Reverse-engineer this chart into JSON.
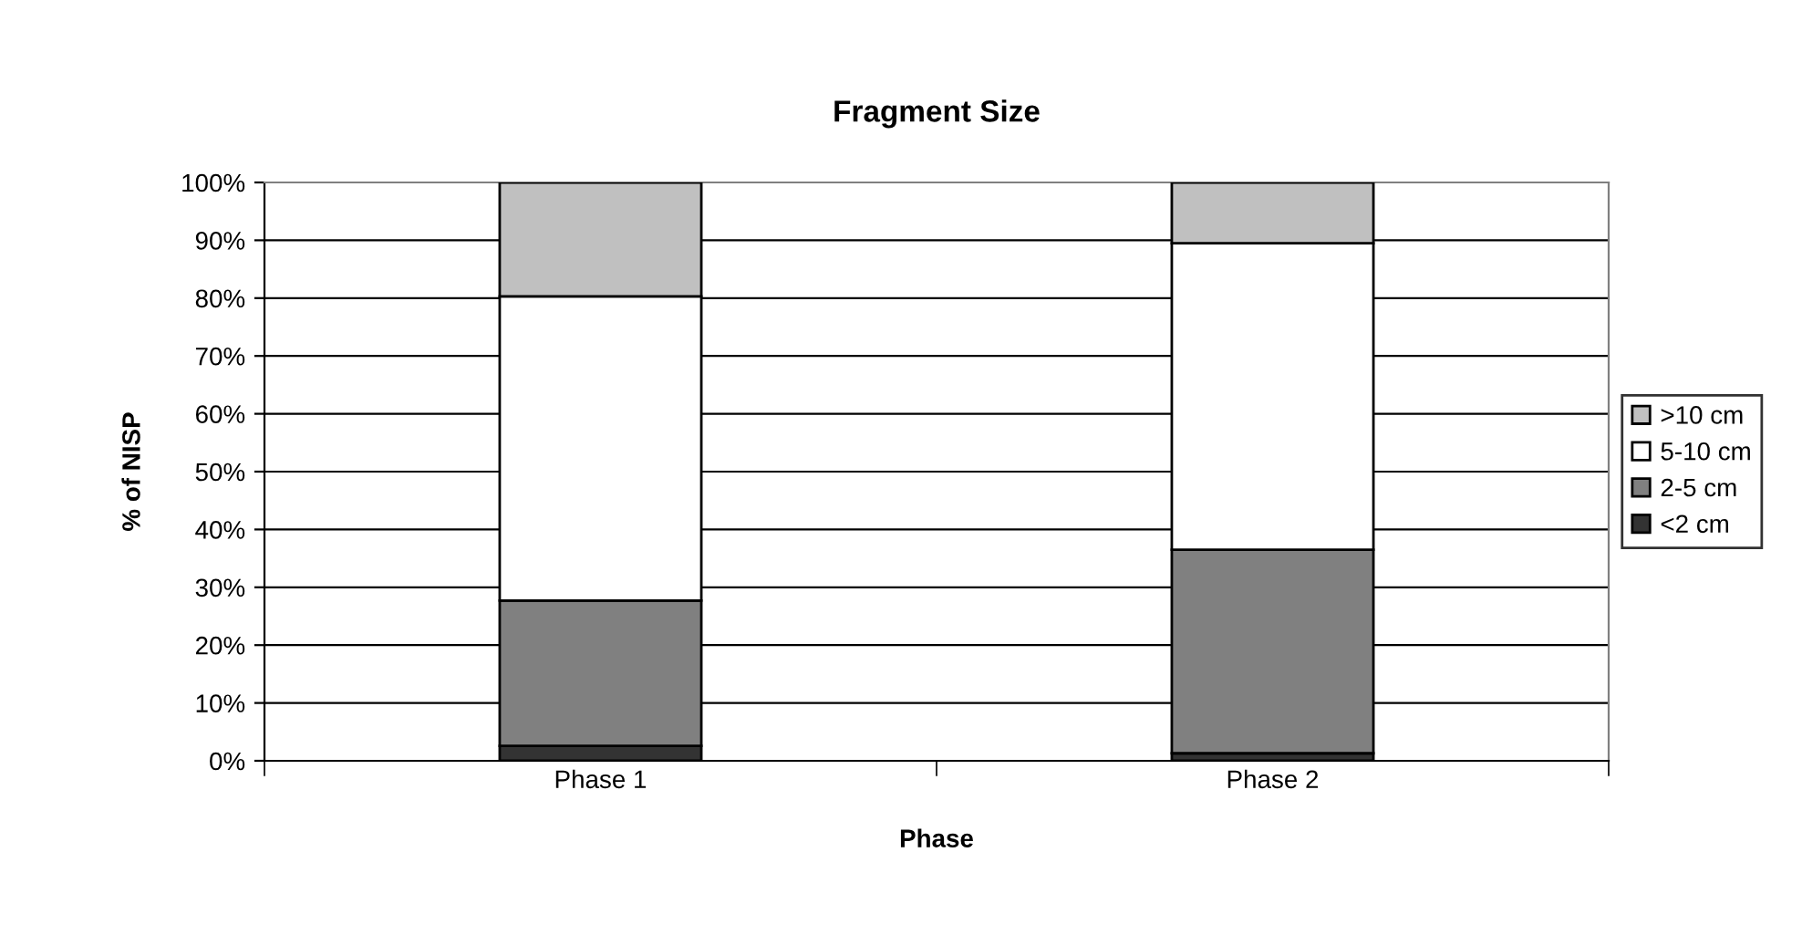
{
  "chart_data": {
    "type": "bar",
    "title": "Fragment Size",
    "xlabel": "Phase",
    "ylabel": "% of NISP",
    "categories": [
      "Phase 1",
      "Phase 2"
    ],
    "stacked": true,
    "series": [
      {
        "name": "<2 cm",
        "color": "#333333",
        "values": [
          2.6,
          1.3
        ]
      },
      {
        "name": "2-5 cm",
        "color": "#808080",
        "values": [
          25.1,
          35.2
        ]
      },
      {
        "name": "5-10 cm",
        "color": "#ffffff",
        "values": [
          52.6,
          53.0
        ]
      },
      {
        "name": ">10 cm",
        "color": "#c0c0c0",
        "values": [
          19.7,
          10.5
        ]
      }
    ],
    "ylim": [
      0,
      100
    ],
    "yticks": [
      {
        "value": 0,
        "label": "0%"
      },
      {
        "value": 10,
        "label": "10%"
      },
      {
        "value": 20,
        "label": "20%"
      },
      {
        "value": 30,
        "label": "30%"
      },
      {
        "value": 40,
        "label": "40%"
      },
      {
        "value": 50,
        "label": "50%"
      },
      {
        "value": 60,
        "label": "60%"
      },
      {
        "value": 70,
        "label": "70%"
      },
      {
        "value": 80,
        "label": "80%"
      },
      {
        "value": 90,
        "label": "90%"
      },
      {
        "value": 100,
        "label": "100%"
      }
    ],
    "grid": "y",
    "legend": "right"
  }
}
